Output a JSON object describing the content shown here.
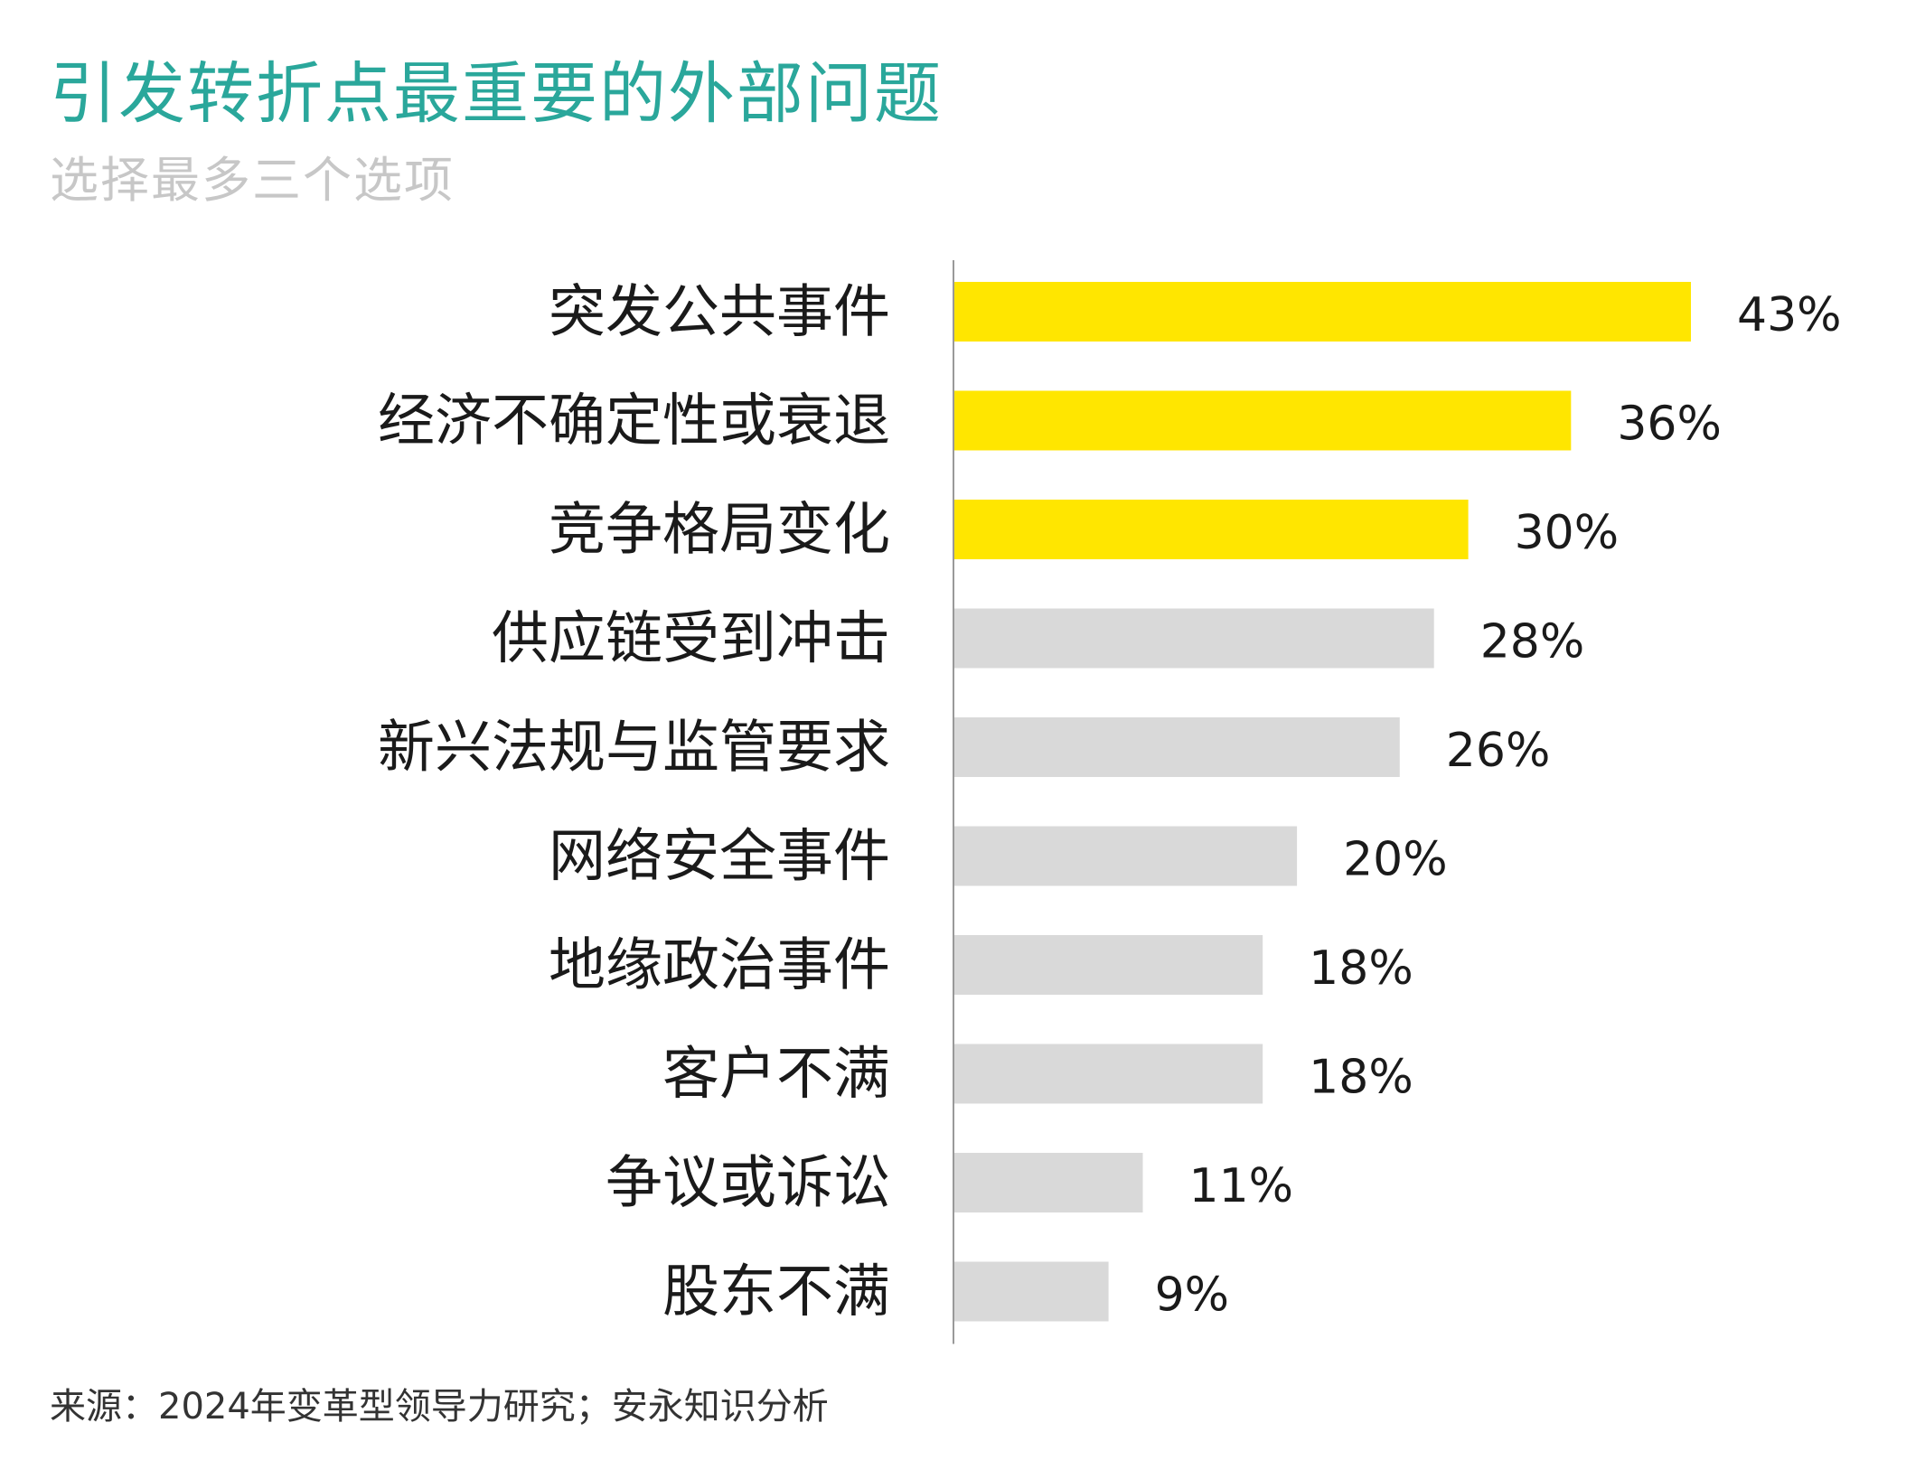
{
  "title": "引发转折点最重要的外部问题",
  "subtitle": "选择最多三个选项",
  "source": "来源：2024年变革型领导力研究；安永知识分析",
  "colors": {
    "title": "#2aa79b",
    "subtitle": "#c7c7c7",
    "highlight": "#ffe600",
    "default": "#d9d9d9",
    "axis": "#999999",
    "text": "#1a1a1a"
  },
  "chart_data": {
    "type": "bar",
    "orientation": "horizontal",
    "title": "引发转折点最重要的外部问题",
    "subtitle": "选择最多三个选项",
    "xlabel": "",
    "ylabel": "",
    "grid": false,
    "highlight_count": 3,
    "categories": [
      "突发公共事件",
      "经济不确定性或衰退",
      "竞争格局变化",
      "供应链受到冲击",
      "新兴法规与监管要求",
      "网络安全事件",
      "地缘政治事件",
      "客户不满",
      "争议或诉讼",
      "股东不满"
    ],
    "values": [
      43,
      36,
      30,
      28,
      26,
      20,
      18,
      18,
      11,
      9
    ],
    "value_labels": [
      "43%",
      "36%",
      "30%",
      "28%",
      "26%",
      "20%",
      "18%",
      "18%",
      "11%",
      "9%"
    ],
    "xlim": [
      0,
      43
    ]
  }
}
